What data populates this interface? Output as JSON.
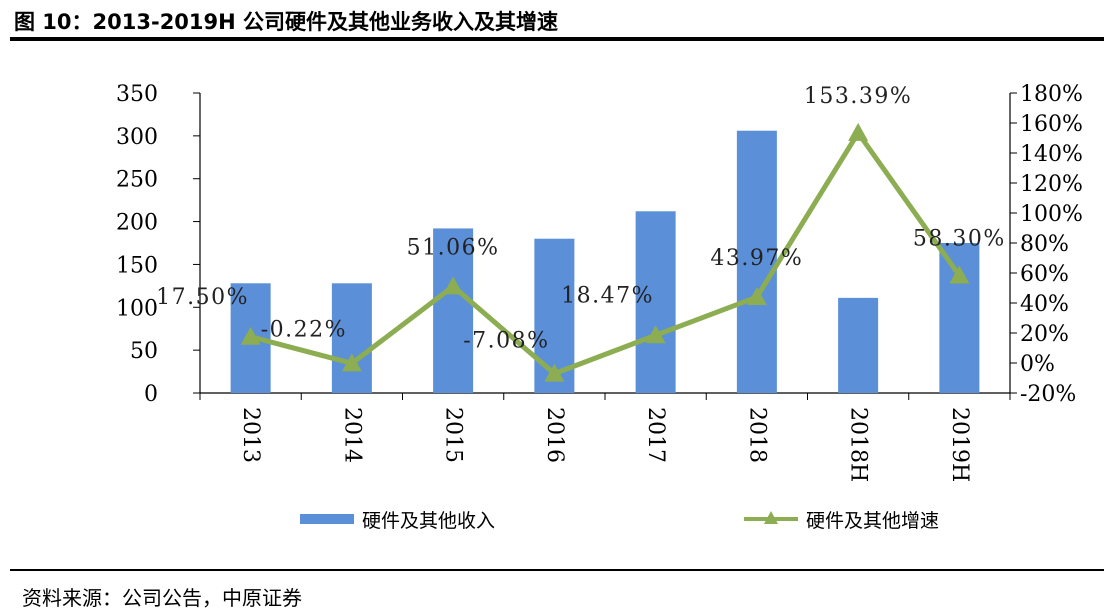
{
  "title": "图 10：2013-2019H 公司硬件及其他业务收入及其增速",
  "source": "资料来源：公司公告，中原证券",
  "colors": {
    "bar": "#5B8FD8",
    "line": "#8CAD51",
    "axis": "#000000"
  },
  "chart_data": {
    "type": "bar+line",
    "categories": [
      "2013",
      "2014",
      "2015",
      "2016",
      "2017",
      "2018",
      "2018H",
      "2019H"
    ],
    "series": [
      {
        "name": "硬件及其他收入",
        "type": "bar",
        "axis": "left",
        "values": [
          128,
          128,
          192,
          180,
          212,
          306,
          111,
          175
        ]
      },
      {
        "name": "硬件及其他增速",
        "type": "line",
        "axis": "right",
        "marker": "triangle",
        "values": [
          17.5,
          -0.22,
          51.06,
          -7.08,
          18.47,
          43.97,
          153.39,
          58.3
        ],
        "labels": [
          "17.50%",
          "-0.22%",
          "51.06%",
          "-7.08%",
          "18.47%",
          "43.97%",
          "153.39%",
          "58.30%"
        ]
      }
    ],
    "y_left": {
      "min": 0,
      "max": 350,
      "ticks": [
        "0",
        "50",
        "100",
        "150",
        "200",
        "250",
        "300",
        "350"
      ]
    },
    "y_right": {
      "min": -20,
      "max": 180,
      "ticks": [
        "-20%",
        "0%",
        "20%",
        "40%",
        "60%",
        "80%",
        "100%",
        "120%",
        "140%",
        "160%",
        "180%"
      ]
    },
    "x_label_orientation": "rotated-90",
    "grid": false,
    "legend": "bottom"
  }
}
